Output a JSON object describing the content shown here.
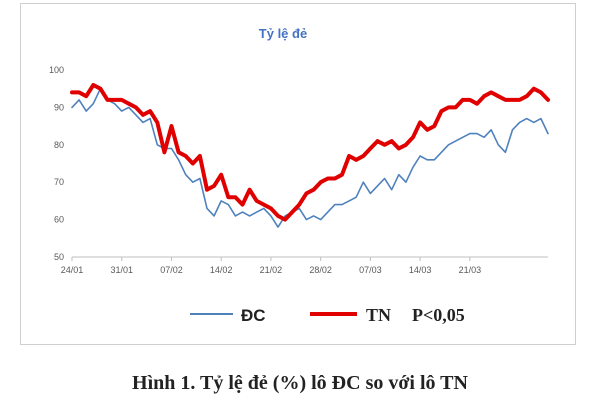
{
  "chart_data": {
    "type": "line",
    "title": "Tỷ lệ đẻ",
    "x_ticks": [
      "24/01",
      "31/01",
      "07/02",
      "14/02",
      "21/02",
      "28/02",
      "07/03",
      "14/03",
      "21/03"
    ],
    "y_ticks": [
      50,
      60,
      70,
      80,
      90,
      100
    ],
    "ylim": [
      50,
      100
    ],
    "grid": false,
    "legend_position": "bottom",
    "series": [
      {
        "name": "ĐC",
        "color": "#4f81bd",
        "values": [
          90,
          92,
          89,
          91,
          95,
          92,
          91,
          89,
          90,
          88,
          86,
          87,
          80,
          79,
          79,
          76,
          72,
          70,
          71,
          63,
          61,
          65,
          64,
          61,
          62,
          61,
          62,
          63,
          61,
          58,
          61,
          62,
          63,
          60,
          61,
          60,
          62,
          64,
          64,
          65,
          66,
          70,
          67,
          69,
          71,
          68,
          72,
          70,
          74,
          77,
          76,
          76,
          78,
          80,
          81,
          82,
          83,
          83,
          82,
          84,
          80,
          78,
          84,
          86,
          87,
          86,
          87,
          83
        ]
      },
      {
        "name": "TN",
        "color": "#e00000",
        "values": [
          94,
          94,
          93,
          96,
          95,
          92,
          92,
          92,
          91,
          90,
          88,
          89,
          86,
          78,
          85,
          78,
          77,
          75,
          77,
          68,
          69,
          72,
          66,
          66,
          64,
          68,
          65,
          64,
          63,
          61,
          60,
          62,
          64,
          67,
          68,
          70,
          71,
          71,
          72,
          77,
          76,
          77,
          79,
          81,
          80,
          81,
          79,
          80,
          82,
          86,
          84,
          85,
          89,
          90,
          90,
          92,
          92,
          91,
          93,
          94,
          93,
          92,
          92,
          92,
          93,
          95,
          94,
          92
        ]
      }
    ]
  },
  "legend": {
    "note": "P<0,05"
  },
  "caption": "Hình 1. Tỷ lệ đẻ (%) lô ĐC so với lô TN"
}
